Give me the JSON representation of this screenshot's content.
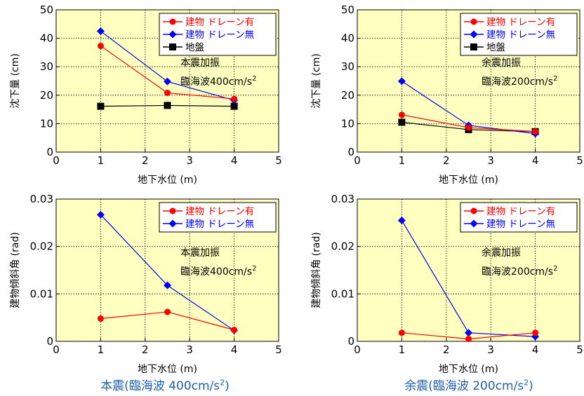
{
  "captions": [
    {
      "pre": "本震(臨海波  400cm/s",
      "sup": "2",
      "post": ")"
    },
    {
      "pre": "余震(臨海波  200cm/s",
      "sup": "2",
      "post": ")"
    }
  ],
  "colors": {
    "plot_bg": "#ffffc0",
    "red": "#ff0000",
    "blue": "#0000ff",
    "black": "#000000"
  },
  "chart_data": [
    {
      "type": "line",
      "title": "",
      "xlabel": "地下水位  (m)",
      "ylabel": "沈下量 (cm)",
      "xlim": [
        0,
        5
      ],
      "ylim": [
        0,
        50
      ],
      "xticks": [
        0,
        1,
        2,
        3,
        4,
        5
      ],
      "yticks": [
        0,
        10,
        20,
        30,
        40,
        50
      ],
      "grid": true,
      "legend_position": "top-right",
      "annotation": {
        "line1": "本震加振",
        "line2": "臨海波400cm/s",
        "sup": "2"
      },
      "series": [
        {
          "name": "建物 ドレーン有",
          "color": "#ff0000",
          "marker": "circle",
          "x": [
            1,
            2.5,
            4
          ],
          "y": [
            37.3,
            20.8,
            18.7
          ]
        },
        {
          "name": "建物 ドレーン無",
          "color": "#0000ff",
          "marker": "diamond",
          "x": [
            1,
            2.5,
            4
          ],
          "y": [
            42.5,
            24.8,
            18.2
          ]
        },
        {
          "name": "地盤",
          "color": "#000000",
          "marker": "square",
          "x": [
            1,
            2.5,
            4
          ],
          "y": [
            16.1,
            16.4,
            16.1
          ]
        }
      ]
    },
    {
      "type": "line",
      "title": "",
      "xlabel": "地下水位  (m)",
      "ylabel": "沈下量 (cm)",
      "xlim": [
        0,
        5
      ],
      "ylim": [
        0,
        50
      ],
      "xticks": [
        0,
        1,
        2,
        3,
        4,
        5
      ],
      "yticks": [
        0,
        10,
        20,
        30,
        40,
        50
      ],
      "grid": true,
      "legend_position": "top-right",
      "annotation": {
        "line1": "余震加振",
        "line2": "臨海波200cm/s",
        "sup": "2"
      },
      "series": [
        {
          "name": "建物 ドレーン有",
          "color": "#ff0000",
          "marker": "circle",
          "x": [
            1,
            2.5,
            4
          ],
          "y": [
            13.1,
            8.6,
            7.2
          ]
        },
        {
          "name": "建物 ドレーン無",
          "color": "#0000ff",
          "marker": "diamond",
          "x": [
            1,
            2.5,
            4
          ],
          "y": [
            24.9,
            9.4,
            6.5
          ]
        },
        {
          "name": "地盤",
          "color": "#000000",
          "marker": "square",
          "x": [
            1,
            2.5,
            4
          ],
          "y": [
            10.5,
            7.9,
            7.2
          ]
        }
      ]
    },
    {
      "type": "line",
      "title": "",
      "xlabel": "地下水位  (m)",
      "ylabel": "建物傾斜角 (rad)",
      "xlim": [
        0,
        5
      ],
      "ylim": [
        0,
        0.03
      ],
      "xticks": [
        0,
        1,
        2,
        3,
        4,
        5
      ],
      "yticks": [
        0,
        0.01,
        0.02,
        0.03
      ],
      "ytick_labels": [
        "0",
        "0.01",
        "0.02",
        "0.03"
      ],
      "grid": true,
      "legend_position": "top-right",
      "annotation": {
        "line1": "本震加振",
        "line2": "臨海波400cm/s",
        "sup": "2"
      },
      "series": [
        {
          "name": "建物 ドレーン有",
          "color": "#ff0000",
          "marker": "circle",
          "x": [
            1,
            2.5,
            4
          ],
          "y": [
            0.0048,
            0.0062,
            0.0024
          ]
        },
        {
          "name": "建物 ドレーン無",
          "color": "#0000ff",
          "marker": "diamond",
          "x": [
            1,
            2.5,
            4
          ],
          "y": [
            0.0267,
            0.0118,
            0.0023
          ]
        }
      ]
    },
    {
      "type": "line",
      "title": "",
      "xlabel": "地下水位  (m)",
      "ylabel": "建物傾斜角 (rad)",
      "xlim": [
        0,
        5
      ],
      "ylim": [
        0,
        0.03
      ],
      "xticks": [
        0,
        1,
        2,
        3,
        4,
        5
      ],
      "yticks": [
        0,
        0.01,
        0.02,
        0.03
      ],
      "ytick_labels": [
        "0",
        "0.01",
        "0.02",
        "0.03"
      ],
      "grid": true,
      "legend_position": "top-right",
      "annotation": {
        "line1": "余震加振",
        "line2": "臨海波200cm/s",
        "sup": "2"
      },
      "series": [
        {
          "name": "建物 ドレーン有",
          "color": "#ff0000",
          "marker": "circle",
          "x": [
            1,
            2.5,
            4
          ],
          "y": [
            0.0018,
            0.0005,
            0.0018
          ]
        },
        {
          "name": "建物 ドレーン無",
          "color": "#0000ff",
          "marker": "diamond",
          "x": [
            1,
            2.5,
            4
          ],
          "y": [
            0.0255,
            0.0018,
            0.001
          ]
        }
      ]
    }
  ]
}
